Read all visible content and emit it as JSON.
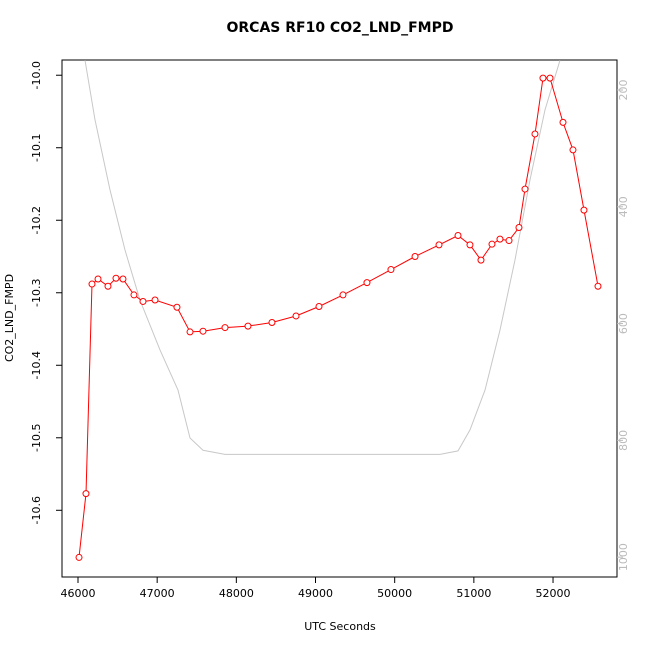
{
  "chart_data": {
    "type": "line",
    "title": "ORCAS RF10 CO2_LND_FMPD",
    "x_label": "UTC Seconds",
    "y_label": "CO2_LND_FMPD",
    "xlim": [
      45798,
      52808
    ],
    "xticks": [
      46000,
      47000,
      48000,
      49000,
      50000,
      51000,
      52000
    ],
    "ylim": [
      -10.692,
      -9.979
    ],
    "yticks": [
      {
        "value": -10,
        "label": "-10.0"
      },
      -10.1,
      -10.2,
      -10.3,
      -10.4,
      -10.5,
      -10.6
    ],
    "y2lim": [
      1034,
      148.6
    ],
    "y2ticks": [
      200,
      400,
      600,
      800,
      1000
    ],
    "series": [
      {
        "color": "#ff0000",
        "marker": "circle",
        "x": [
          46013,
          46101,
          46177,
          46253,
          46379,
          46480,
          46568,
          46707,
          46821,
          46973,
          47250,
          47415,
          47579,
          47857,
          48147,
          48450,
          48754,
          49044,
          49347,
          49650,
          49953,
          50257,
          50560,
          50800,
          50951,
          51090,
          51229,
          51330,
          51444,
          51570,
          51646,
          51772,
          51873,
          51962,
          52126,
          52252,
          52391,
          52568
        ],
        "values": [
          -10.665,
          -10.577,
          -10.288,
          -10.281,
          -10.291,
          -10.28,
          -10.281,
          -10.303,
          -10.312,
          -10.31,
          -10.32,
          -10.354,
          -10.353,
          -10.348,
          -10.346,
          -10.341,
          -10.332,
          -10.319,
          -10.303,
          -10.286,
          -10.268,
          -10.25,
          -10.234,
          -10.221,
          -10.234,
          -10.255,
          -10.233,
          -10.226,
          -10.228,
          -10.21,
          -10.157,
          -10.081,
          -10.004,
          -10.004,
          -10.065,
          -10.103,
          -10.186,
          -10.291
        ]
      },
      {
        "color": "#c8c8c8",
        "axis": "y2",
        "x": [
          46088,
          46215,
          46404,
          46594,
          46783,
          47036,
          47263,
          47415,
          47579,
          47857,
          48804,
          50067,
          50572,
          50800,
          50951,
          51141,
          51330,
          51520,
          51709,
          51899,
          52088
        ],
        "values": [
          149,
          251,
          371,
          474,
          560,
          645,
          714,
          796,
          817,
          824,
          824,
          824,
          824,
          818,
          782,
          714,
          611,
          491,
          354,
          234,
          149
        ]
      }
    ]
  }
}
